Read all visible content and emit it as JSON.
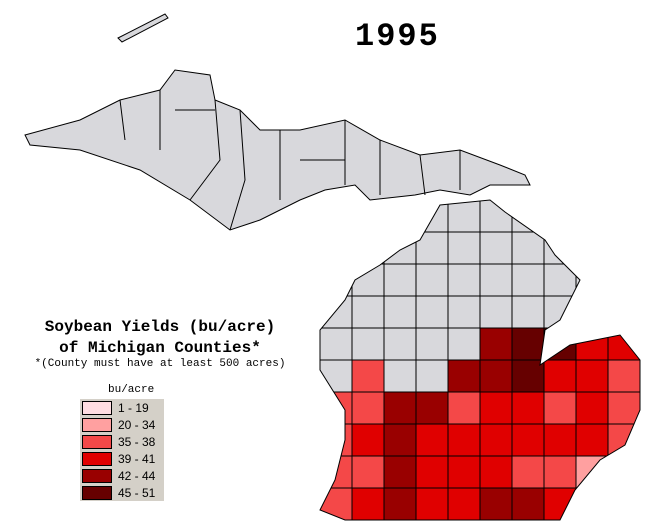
{
  "year": "1995",
  "title_line1": "Soybean Yields (bu/acre)",
  "title_line2": "of Michigan Counties*",
  "footnote": "*(County must have at least 500 acres)",
  "legend": {
    "title": "bu/acre",
    "items": [
      {
        "label": "1 - 19",
        "color": "#ffdde2"
      },
      {
        "label": "20 - 34",
        "color": "#ffa0a0"
      },
      {
        "label": "35 - 38",
        "color": "#f44848"
      },
      {
        "label": "39 - 41",
        "color": "#e00000"
      },
      {
        "label": "42 - 44",
        "color": "#990000"
      },
      {
        "label": "45 - 51",
        "color": "#660000"
      }
    ]
  },
  "no_data_color": "#d8d8dc",
  "county_levels": [
    [
      -1,
      -1,
      -1,
      -1,
      -1,
      -1,
      -1,
      -1,
      -1,
      -1
    ],
    [
      -1,
      -1,
      -1,
      -1,
      -1,
      -1,
      -1,
      -1,
      -1,
      -1
    ],
    [
      -1,
      -1,
      -1,
      -1,
      -1,
      -1,
      -1,
      -1,
      -1,
      -1
    ],
    [
      -1,
      -1,
      -1,
      -1,
      -1,
      -1,
      -1,
      -1,
      -1,
      -1
    ],
    [
      -1,
      -1,
      -1,
      -1,
      -1,
      4,
      5,
      5,
      3,
      3
    ],
    [
      -1,
      2,
      -1,
      -1,
      4,
      4,
      5,
      3,
      3,
      2
    ],
    [
      2,
      2,
      4,
      4,
      2,
      3,
      3,
      2,
      3,
      2
    ],
    [
      2,
      3,
      4,
      3,
      3,
      3,
      3,
      3,
      3,
      2
    ],
    [
      2,
      2,
      4,
      3,
      3,
      3,
      2,
      2,
      1,
      1
    ],
    [
      2,
      3,
      4,
      3,
      3,
      4,
      4,
      3,
      1,
      1
    ]
  ]
}
